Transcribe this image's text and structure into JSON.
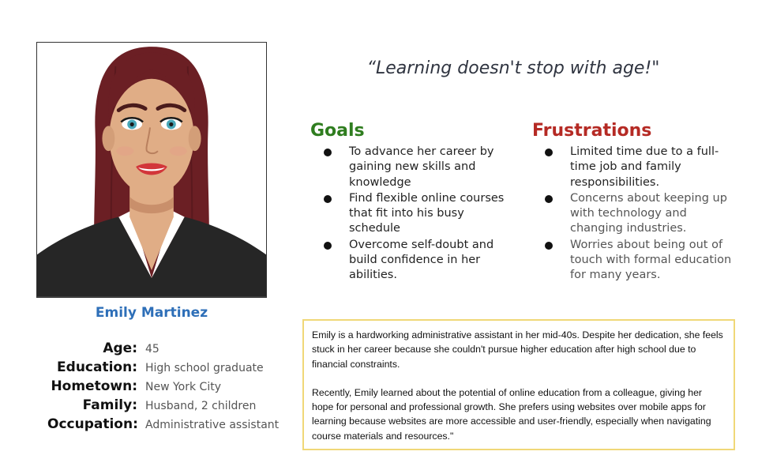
{
  "persona": {
    "name": "Emily Martinez",
    "quote": "“Learning doesn't stop with age!\"",
    "details": [
      {
        "label": "Age:",
        "value": "45"
      },
      {
        "label": "Education:",
        "value": "High school graduate"
      },
      {
        "label": "Hometown:",
        "value": "New York City"
      },
      {
        "label": "Family:",
        "value": "Husband, 2 children"
      },
      {
        "label": "Occupation:",
        "value": "Administrative assistant"
      }
    ]
  },
  "goals": {
    "title": "Goals",
    "items": [
      "To advance her career by gaining new skills and knowledge",
      " Find flexible online courses that fit into his busy schedule",
      "Overcome self-doubt and build confidence in her abilities."
    ]
  },
  "frustrations": {
    "title": "Frustrations",
    "items": [
      "Limited time due to a full-time job and family responsibilities.",
      "Concerns about keeping up with technology and changing industries.",
      "Worries about being out of touch with formal education for many years."
    ]
  },
  "bio": {
    "paragraphs": [
      "Emily is a hardworking administrative assistant in her mid-40s. Despite her dedication, she feels stuck in her career because she couldn't pursue higher education after high school due to financial constraints.",
      "Recently, Emily learned about the potential of online education from a colleague, giving her hope for personal and professional growth. She prefers using websites over mobile apps for learning because websites are more accessible and user-friendly, especially when navigating course materials and resources.\""
    ]
  },
  "colors": {
    "name": "#2e6fb8",
    "goals": "#2f7d1f",
    "frustrations": "#b52a24",
    "bio_border": "#f0d878",
    "hair": "#6b1f24",
    "skin": "#e0ad86",
    "jacket": "#262626"
  },
  "icons": {
    "portrait": "woman-portrait-illustration"
  }
}
